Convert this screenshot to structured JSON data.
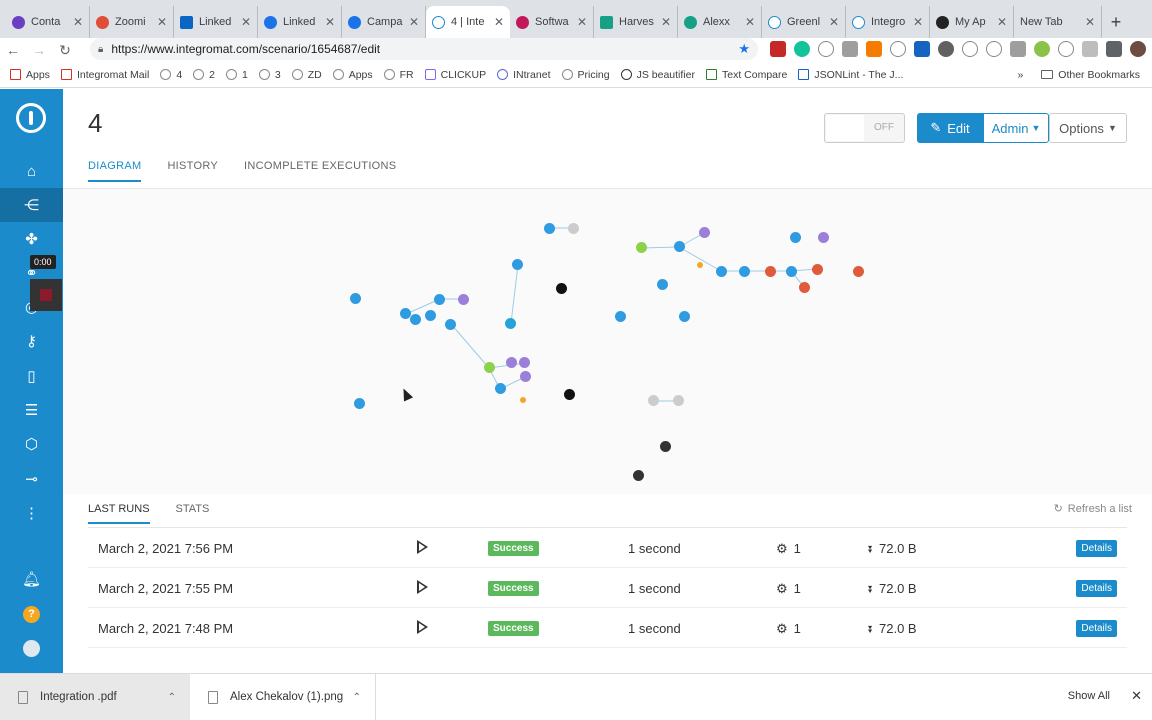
{
  "browser": {
    "tabs": [
      {
        "label": "Conta",
        "color": "#6b3fc4"
      },
      {
        "label": "Zoomi",
        "color": "#e04e39"
      },
      {
        "label": "Linked",
        "color": "#0a66c2"
      },
      {
        "label": "Linked",
        "color": "#1a73e8"
      },
      {
        "label": "Campa",
        "color": "#1a73e8"
      },
      {
        "label": "4 | Inte",
        "color": "#1c8bcb"
      },
      {
        "label": "Softwa",
        "color": "#c2185b"
      },
      {
        "label": "Harves",
        "color": "#16a085"
      },
      {
        "label": "Alexx",
        "color": "#16a085"
      },
      {
        "label": "Greenl",
        "color": "#1c8bcb"
      },
      {
        "label": "Integro",
        "color": "#1c8bcb"
      },
      {
        "label": "My Ap",
        "color": "#222222"
      },
      {
        "label": "New Tab",
        "color": "#dee1e6"
      }
    ],
    "url": "https://www.integromat.com/scenario/1654687/edit",
    "bookmarks": [
      "Apps",
      "Integromat Mail",
      "4",
      "2",
      "1",
      "3",
      "ZD",
      "Apps",
      "FR",
      "CLICKUP",
      "INtranet",
      "Pricing",
      "JS beautifier",
      "Text Compare",
      "JSONLint - The J..."
    ],
    "other_bookmarks": "Other Bookmarks"
  },
  "sidebar": {
    "timer": "0:00"
  },
  "scenario": {
    "title": "4",
    "toggle_label": "OFF",
    "edit_label": "Edit",
    "admin_label": "Admin",
    "options_label": "Options"
  },
  "tabs": [
    "DIAGRAM",
    "HISTORY",
    "INCOMPLETE EXECUTIONS"
  ],
  "runs": {
    "tabs": [
      "LAST RUNS",
      "STATS"
    ],
    "refresh_label": "Refresh a list",
    "details_label": "Details",
    "rows": [
      {
        "date": "March 2, 2021 7:56 PM",
        "status": "Success",
        "duration": "1 second",
        "operations": "1",
        "size": "72.0 B"
      },
      {
        "date": "March 2, 2021 7:55 PM",
        "status": "Success",
        "duration": "1 second",
        "operations": "1",
        "size": "72.0 B"
      },
      {
        "date": "March 2, 2021 7:48 PM",
        "status": "Success",
        "duration": "1 second",
        "operations": "1",
        "size": "72.0 B"
      }
    ]
  },
  "downloads": {
    "items": [
      "Integration .pdf",
      "Alex Chekalov (1).png"
    ],
    "show_all": "Show All"
  }
}
